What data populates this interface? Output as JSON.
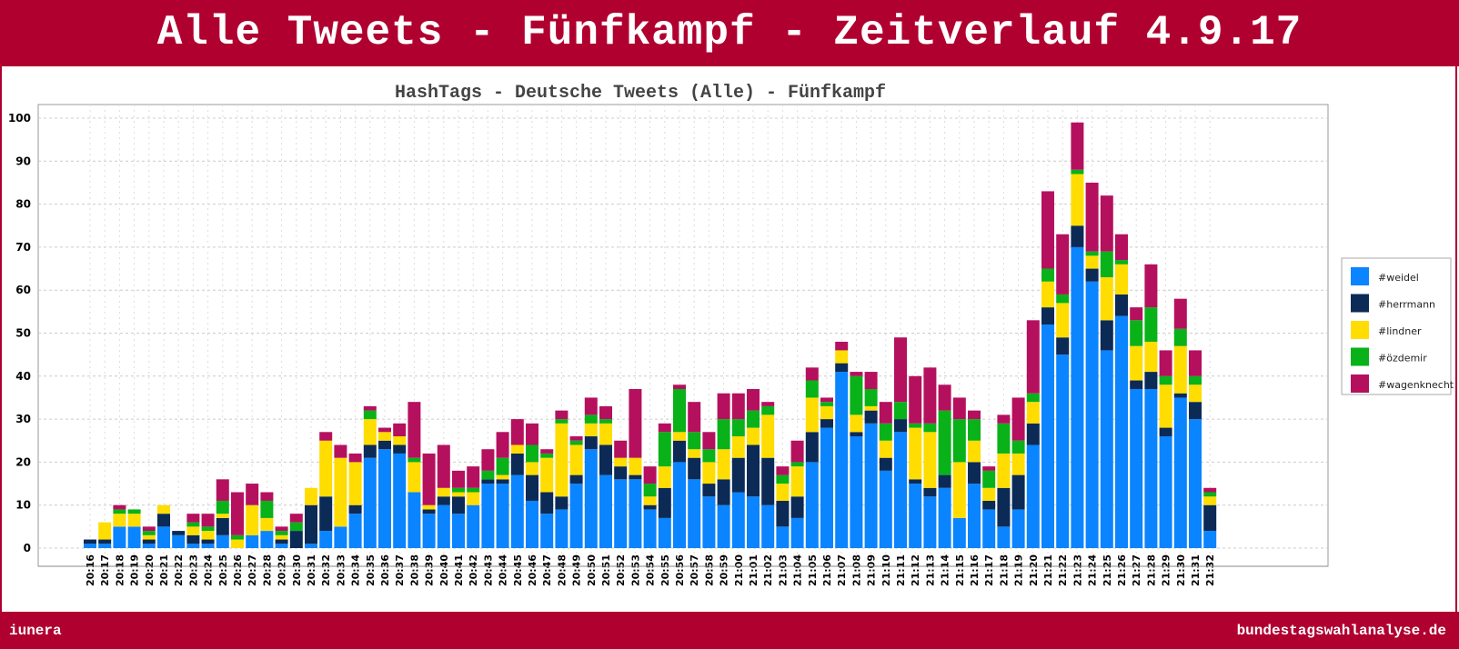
{
  "banner": {
    "title": "Alle Tweets - Fünfkampf - Zeitverlauf 4.9.17",
    "footer_left": "iunera",
    "footer_right": "bundestagswahlanalyse.de"
  },
  "colors": {
    "banner": "#b00030",
    "#weidel": "#0a84ff",
    "#herrmann": "#0b2a56",
    "#lindner": "#ffdd00",
    "#özdemir": "#08b218",
    "#wagenknecht": "#b5105e"
  },
  "chart_data": {
    "type": "bar",
    "stacked": true,
    "title": "HashTags - Deutsche Tweets (Alle) - Fünfkampf",
    "xlabel": "",
    "ylabel": "",
    "ylim": [
      0,
      100
    ],
    "yticks": [
      0,
      10,
      20,
      30,
      40,
      50,
      60,
      70,
      80,
      90,
      100
    ],
    "grid": true,
    "legend_position": "right",
    "categories": [
      "20:16",
      "20:17",
      "20:18",
      "20:19",
      "20:20",
      "20:21",
      "20:22",
      "20:23",
      "20:24",
      "20:25",
      "20:26",
      "20:27",
      "20:28",
      "20:29",
      "20:30",
      "20:31",
      "20:32",
      "20:33",
      "20:34",
      "20:35",
      "20:36",
      "20:37",
      "20:38",
      "20:39",
      "20:40",
      "20:41",
      "20:42",
      "20:43",
      "20:44",
      "20:45",
      "20:46",
      "20:47",
      "20:48",
      "20:49",
      "20:50",
      "20:51",
      "20:52",
      "20:53",
      "20:54",
      "20:55",
      "20:56",
      "20:57",
      "20:58",
      "20:59",
      "21:00",
      "21:01",
      "21:02",
      "21:03",
      "21:04",
      "21:05",
      "21:06",
      "21:07",
      "21:08",
      "21:09",
      "21:10",
      "21:11",
      "21:12",
      "21:13",
      "21:14",
      "21:15",
      "21:16",
      "21:17",
      "21:18",
      "21:19",
      "21:20",
      "21:21",
      "21:22",
      "21:23",
      "21:24",
      "21:25",
      "21:26",
      "21:27",
      "21:28",
      "21:29",
      "21:30",
      "21:31",
      "21:32"
    ],
    "series": [
      {
        "name": "#weidel",
        "values": [
          1,
          1,
          5,
          5,
          1,
          5,
          3,
          1,
          1,
          3,
          0,
          3,
          4,
          1,
          0,
          1,
          4,
          5,
          8,
          21,
          23,
          22,
          13,
          8,
          10,
          8,
          10,
          15,
          15,
          17,
          11,
          8,
          9,
          15,
          23,
          17,
          16,
          16,
          9,
          7,
          20,
          16,
          12,
          10,
          13,
          12,
          10,
          5,
          7,
          20,
          28,
          41,
          26,
          29,
          18,
          27,
          15,
          12,
          14,
          7,
          15,
          9,
          5,
          9,
          24,
          52,
          45,
          70,
          62,
          46,
          54,
          37,
          37,
          26,
          35,
          30,
          4
        ]
      },
      {
        "name": "#herrmann",
        "values": [
          1,
          1,
          0,
          0,
          1,
          3,
          1,
          2,
          1,
          4,
          0,
          0,
          0,
          1,
          4,
          9,
          8,
          0,
          2,
          3,
          2,
          2,
          0,
          1,
          2,
          4,
          0,
          1,
          1,
          5,
          6,
          5,
          3,
          2,
          3,
          7,
          3,
          1,
          1,
          7,
          5,
          5,
          3,
          6,
          8,
          12,
          11,
          6,
          5,
          7,
          2,
          2,
          1,
          3,
          3,
          3,
          1,
          2,
          3,
          0,
          5,
          2,
          9,
          8,
          5,
          4,
          4,
          5,
          3,
          7,
          5,
          2,
          4,
          2,
          1,
          4,
          6
        ]
      },
      {
        "name": "#lindner",
        "values": [
          0,
          4,
          3,
          3,
          1,
          2,
          0,
          2,
          2,
          1,
          2,
          7,
          3,
          1,
          0,
          4,
          13,
          16,
          10,
          6,
          2,
          2,
          7,
          1,
          2,
          1,
          3,
          0,
          1,
          2,
          3,
          8,
          17,
          7,
          3,
          5,
          2,
          4,
          2,
          5,
          2,
          2,
          5,
          7,
          5,
          4,
          10,
          4,
          7,
          8,
          3,
          3,
          4,
          1,
          4,
          0,
          12,
          13,
          0,
          13,
          5,
          3,
          8,
          5,
          5,
          6,
          8,
          12,
          3,
          10,
          7,
          8,
          7,
          10,
          11,
          4,
          2
        ]
      },
      {
        "name": "#özdemir",
        "values": [
          0,
          0,
          1,
          1,
          1,
          0,
          0,
          1,
          1,
          3,
          1,
          0,
          4,
          1,
          2,
          0,
          0,
          0,
          0,
          2,
          0,
          0,
          1,
          0,
          0,
          1,
          1,
          2,
          4,
          0,
          4,
          1,
          1,
          1,
          2,
          1,
          0,
          0,
          3,
          8,
          10,
          4,
          3,
          7,
          4,
          4,
          2,
          2,
          1,
          4,
          1,
          0,
          9,
          4,
          4,
          4,
          1,
          2,
          15,
          10,
          5,
          4,
          7,
          3,
          2,
          3,
          2,
          1,
          1,
          6,
          1,
          6,
          8,
          2,
          4,
          2,
          1
        ]
      },
      {
        "name": "#wagenknecht",
        "values": [
          0,
          0,
          1,
          0,
          1,
          0,
          0,
          2,
          3,
          5,
          10,
          5,
          2,
          1,
          2,
          0,
          2,
          3,
          2,
          1,
          1,
          3,
          13,
          12,
          10,
          4,
          5,
          5,
          6,
          6,
          5,
          1,
          2,
          1,
          4,
          3,
          4,
          16,
          4,
          2,
          1,
          7,
          4,
          6,
          6,
          5,
          1,
          2,
          5,
          3,
          1,
          2,
          1,
          4,
          5,
          15,
          11,
          13,
          6,
          5,
          2,
          1,
          2,
          10,
          17,
          18,
          14,
          11,
          16,
          13,
          6,
          3,
          10,
          6,
          7,
          6,
          1
        ]
      }
    ]
  }
}
